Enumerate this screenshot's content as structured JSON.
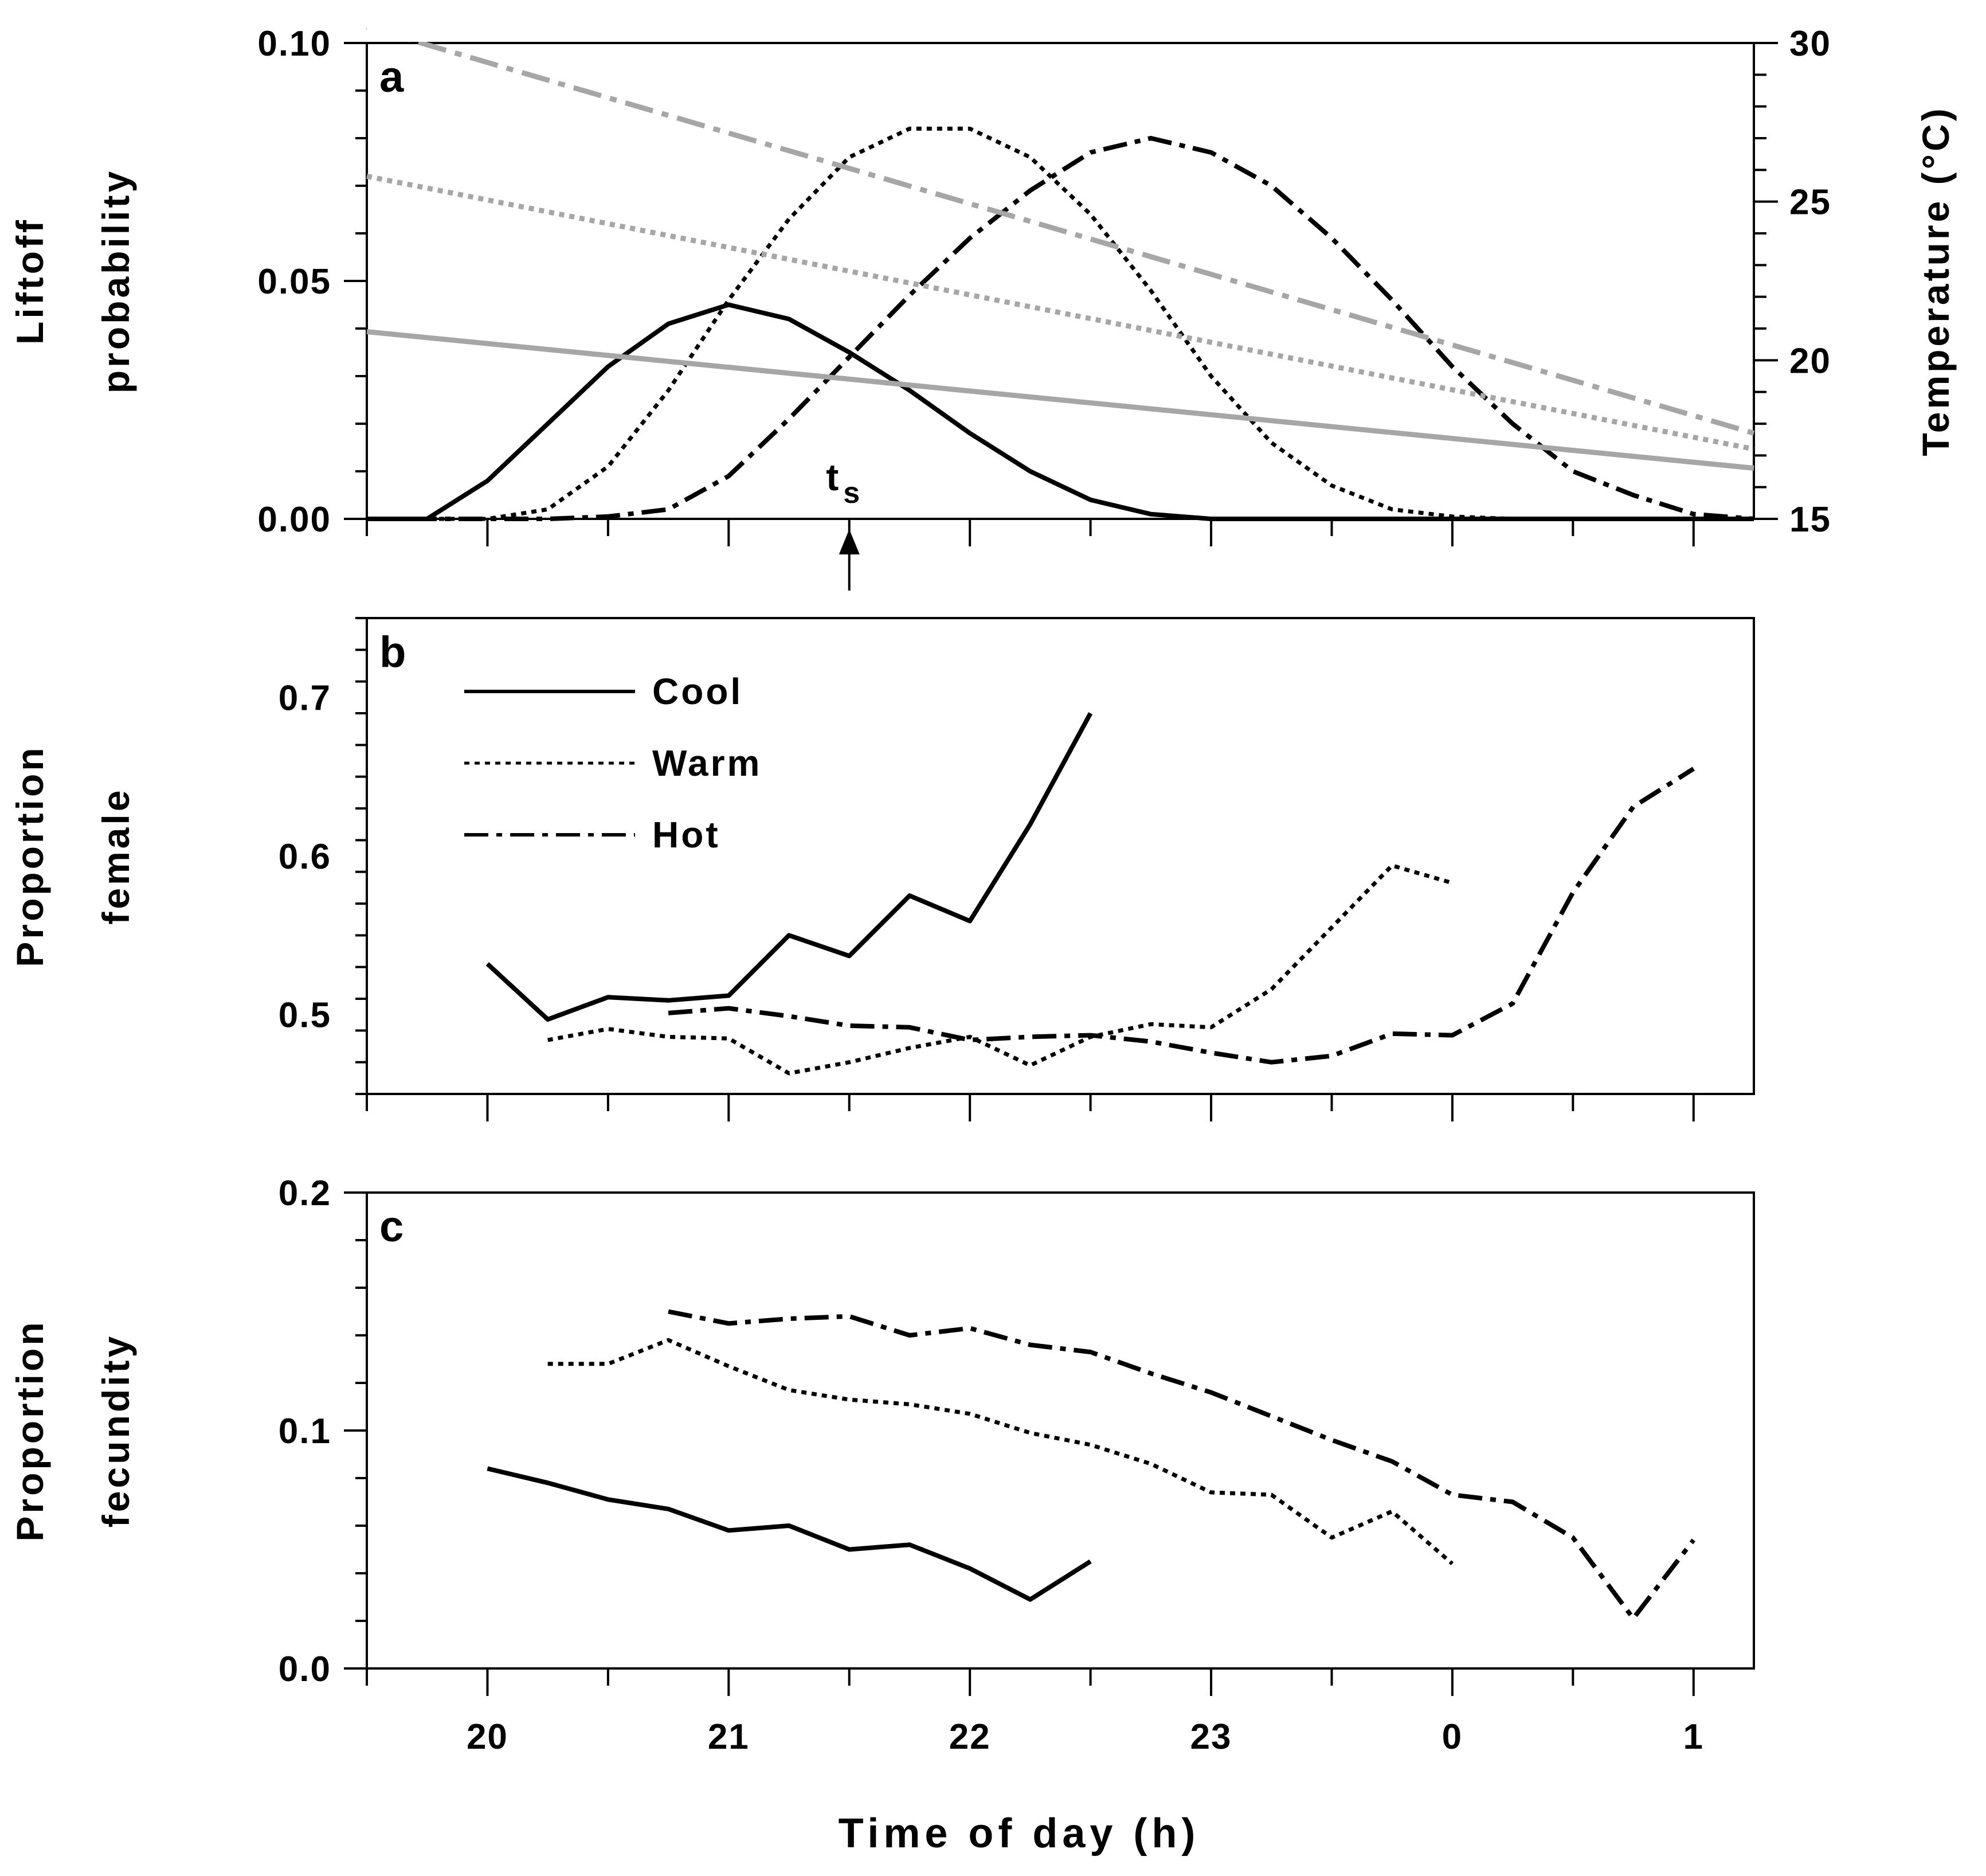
{
  "chart_data": [
    {
      "panel": "a",
      "type": "line",
      "ylabel": [
        "Liftoff",
        "probability"
      ],
      "y2label": "Temperature (°C)",
      "xlim": [
        19.5,
        25.25
      ],
      "ylim": [
        0,
        0.1
      ],
      "y2lim": [
        15,
        30
      ],
      "yticks": [
        "0.00",
        "0.05",
        "0.10"
      ],
      "y2ticks": [
        "15",
        "20",
        "25",
        "30"
      ],
      "annotation": {
        "text": "t",
        "subscript": "s",
        "x": 21.5
      },
      "series": [
        {
          "name": "Cool",
          "style": "solid",
          "color": "#000000",
          "x": [
            19.5,
            19.75,
            20,
            20.25,
            20.5,
            20.75,
            21,
            21.25,
            21.5,
            21.75,
            22,
            22.25,
            22.5,
            22.75,
            23,
            23.25,
            23.5,
            23.75,
            24,
            24.25,
            24.5,
            24.75,
            25,
            25.25
          ],
          "y": [
            0,
            0,
            0.008,
            0.02,
            0.032,
            0.041,
            0.045,
            0.042,
            0.035,
            0.027,
            0.018,
            0.01,
            0.004,
            0.001,
            0,
            0,
            0,
            0,
            0,
            0,
            0,
            0,
            0,
            0
          ]
        },
        {
          "name": "Warm",
          "style": "dotted",
          "color": "#000000",
          "x": [
            19.5,
            19.75,
            20,
            20.25,
            20.5,
            20.75,
            21,
            21.25,
            21.5,
            21.75,
            22,
            22.25,
            22.5,
            22.75,
            23,
            23.25,
            23.5,
            23.75,
            24,
            24.25,
            24.5,
            24.75,
            25,
            25.25
          ],
          "y": [
            0,
            0,
            0,
            0.002,
            0.011,
            0.027,
            0.046,
            0.063,
            0.076,
            0.082,
            0.082,
            0.076,
            0.064,
            0.048,
            0.03,
            0.016,
            0.007,
            0.002,
            0.0005,
            0,
            0,
            0,
            0,
            0
          ]
        },
        {
          "name": "Hot",
          "style": "dashdot",
          "color": "#000000",
          "x": [
            19.5,
            19.75,
            20,
            20.25,
            20.5,
            20.75,
            21,
            21.25,
            21.5,
            21.75,
            22,
            22.25,
            22.5,
            22.75,
            23,
            23.25,
            23.5,
            23.75,
            24,
            24.25,
            24.5,
            24.75,
            25,
            25.25
          ],
          "y": [
            0,
            0,
            0,
            0,
            0.0005,
            0.002,
            0.009,
            0.021,
            0.034,
            0.047,
            0.059,
            0.069,
            0.077,
            0.08,
            0.077,
            0.07,
            0.059,
            0.046,
            0.032,
            0.02,
            0.01,
            0.005,
            0.001,
            0
          ]
        },
        {
          "name": "Cool temperature",
          "style": "solid",
          "color": "#a6a6a6",
          "axis": "right",
          "x": [
            19.5,
            25.25
          ],
          "y": [
            20.9,
            16.6
          ]
        },
        {
          "name": "Warm temperature",
          "style": "dotted",
          "color": "#a6a6a6",
          "axis": "right",
          "x": [
            19.5,
            25.25
          ],
          "y": [
            25.8,
            17.2
          ]
        },
        {
          "name": "Hot temperature",
          "style": "dashdot",
          "color": "#a6a6a6",
          "axis": "right",
          "x": [
            19.5,
            25.25
          ],
          "y": [
            30.5,
            17.7
          ]
        }
      ]
    },
    {
      "panel": "b",
      "type": "line",
      "ylabel": [
        "Proportion",
        "female"
      ],
      "xlim": [
        19.5,
        25.25
      ],
      "ylim": [
        0.45,
        0.75
      ],
      "yticks": [
        "0.5",
        "0.6",
        "0.7"
      ],
      "legend": {
        "placement": "top-left",
        "entries": [
          "Cool",
          "Warm",
          "Hot"
        ]
      },
      "series": [
        {
          "name": "Cool",
          "style": "solid",
          "x": [
            20,
            20.25,
            20.5,
            20.75,
            21,
            21.25,
            21.5,
            21.75,
            22,
            22.25,
            22.5
          ],
          "y": [
            0.532,
            0.497,
            0.511,
            0.509,
            0.512,
            0.55,
            0.537,
            0.575,
            0.559,
            0.62,
            0.69
          ]
        },
        {
          "name": "Warm",
          "style": "dotted",
          "x": [
            20.25,
            20.5,
            20.75,
            21,
            21.25,
            21.5,
            21.75,
            22,
            22.25,
            22.5,
            22.75,
            23,
            23.25,
            23.5,
            23.75,
            24
          ],
          "y": [
            0.484,
            0.491,
            0.486,
            0.485,
            0.463,
            0.47,
            0.479,
            0.486,
            0.468,
            0.486,
            0.494,
            0.492,
            0.516,
            0.555,
            0.594,
            0.583
          ]
        },
        {
          "name": "Hot",
          "style": "dashdot",
          "x": [
            20.75,
            21,
            21.25,
            21.5,
            21.75,
            22,
            22.25,
            22.5,
            22.75,
            23,
            23.25,
            23.5,
            23.75,
            24,
            24.25,
            24.5,
            24.75,
            25
          ],
          "y": [
            0.501,
            0.504,
            0.499,
            0.493,
            0.492,
            0.484,
            0.486,
            0.487,
            0.483,
            0.476,
            0.47,
            0.474,
            0.488,
            0.487,
            0.507,
            0.577,
            0.631,
            0.655
          ]
        }
      ]
    },
    {
      "panel": "c",
      "type": "line",
      "ylabel": [
        "Proportion",
        "fecundity"
      ],
      "xlabel": "Time of day (h)",
      "xlim": [
        19.5,
        25.25
      ],
      "ylim": [
        0,
        0.2
      ],
      "yticks": [
        "0.0",
        "0.1",
        "0.2"
      ],
      "xticks": {
        "values": [
          20,
          21,
          22,
          23,
          24,
          25
        ],
        "labels": [
          "20",
          "21",
          "22",
          "23",
          "0",
          "1"
        ]
      },
      "series": [
        {
          "name": "Cool",
          "style": "solid",
          "x": [
            20,
            20.25,
            20.5,
            20.75,
            21,
            21.25,
            21.5,
            21.75,
            22,
            22.25,
            22.5
          ],
          "y": [
            0.084,
            0.078,
            0.071,
            0.067,
            0.058,
            0.06,
            0.05,
            0.052,
            0.042,
            0.029,
            0.045
          ]
        },
        {
          "name": "Warm",
          "style": "dotted",
          "x": [
            20.25,
            20.5,
            20.75,
            21,
            21.25,
            21.5,
            21.75,
            22,
            22.25,
            22.5,
            22.75,
            23,
            23.25,
            23.5,
            23.75,
            24
          ],
          "y": [
            0.128,
            0.128,
            0.138,
            0.127,
            0.117,
            0.113,
            0.111,
            0.107,
            0.099,
            0.094,
            0.086,
            0.074,
            0.073,
            0.055,
            0.066,
            0.044
          ]
        },
        {
          "name": "Hot",
          "style": "dashdot",
          "x": [
            20.75,
            21,
            21.25,
            21.5,
            21.75,
            22,
            22.25,
            22.5,
            22.75,
            23,
            23.25,
            23.5,
            23.75,
            24,
            24.25,
            24.5,
            24.75,
            25
          ],
          "y": [
            0.15,
            0.145,
            0.147,
            0.148,
            0.14,
            0.143,
            0.136,
            0.133,
            0.124,
            0.116,
            0.106,
            0.096,
            0.087,
            0.073,
            0.07,
            0.055,
            0.021,
            0.054
          ]
        }
      ]
    }
  ]
}
